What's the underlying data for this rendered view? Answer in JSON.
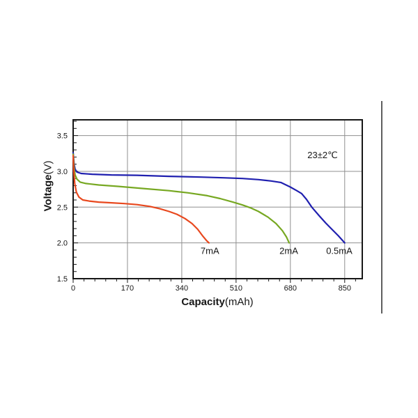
{
  "page": {
    "background": "#ffffff"
  },
  "divider": {
    "color": "#5e5e5e"
  },
  "chart_data": {
    "type": "line",
    "title": "",
    "xlabel_bold": "Capacity",
    "xlabel_unit": "(mAh)",
    "ylabel_bold": "Voltage",
    "ylabel_unit": "(V)",
    "xlim": [
      0,
      905
    ],
    "ylim": [
      1.5,
      3.72
    ],
    "x_major_ticks": [
      0,
      170,
      340,
      510,
      680,
      850
    ],
    "x_minor_step": 34,
    "y_major_ticks": [
      1.5,
      2.0,
      2.5,
      3.0,
      3.5
    ],
    "y_minor_step": 0.1,
    "grid": true,
    "legend_position": "labels-at-curve-ends",
    "annotation": {
      "text": "23±2℃",
      "x": 780,
      "y": 3.23
    },
    "colors": {
      "grid": "#8f8f8f",
      "frame": "#161616",
      "text": "#161616"
    },
    "series": [
      {
        "name": "0.5mA",
        "color": "#1f1faf",
        "label_at": [
          833,
          1.885
        ],
        "points": [
          [
            0,
            3.26
          ],
          [
            3,
            3.1
          ],
          [
            6,
            3.03
          ],
          [
            12,
            2.99
          ],
          [
            25,
            2.97
          ],
          [
            60,
            2.96
          ],
          [
            120,
            2.95
          ],
          [
            200,
            2.945
          ],
          [
            300,
            2.93
          ],
          [
            400,
            2.92
          ],
          [
            470,
            2.91
          ],
          [
            530,
            2.9
          ],
          [
            580,
            2.885
          ],
          [
            620,
            2.865
          ],
          [
            650,
            2.845
          ],
          [
            680,
            2.78
          ],
          [
            700,
            2.73
          ],
          [
            715,
            2.69
          ],
          [
            730,
            2.61
          ],
          [
            747,
            2.5
          ],
          [
            770,
            2.38
          ],
          [
            790,
            2.28
          ],
          [
            810,
            2.19
          ],
          [
            830,
            2.1
          ],
          [
            850,
            2.0
          ]
        ]
      },
      {
        "name": "2mA",
        "color": "#77a822",
        "label_at": [
          675,
          1.885
        ],
        "points": [
          [
            0,
            3.24
          ],
          [
            3,
            3.04
          ],
          [
            6,
            2.95
          ],
          [
            12,
            2.89
          ],
          [
            22,
            2.85
          ],
          [
            40,
            2.83
          ],
          [
            80,
            2.81
          ],
          [
            140,
            2.79
          ],
          [
            220,
            2.76
          ],
          [
            300,
            2.73
          ],
          [
            360,
            2.7
          ],
          [
            420,
            2.66
          ],
          [
            460,
            2.62
          ],
          [
            500,
            2.57
          ],
          [
            530,
            2.53
          ],
          [
            555,
            2.49
          ],
          [
            580,
            2.44
          ],
          [
            610,
            2.36
          ],
          [
            635,
            2.27
          ],
          [
            655,
            2.17
          ],
          [
            668,
            2.08
          ],
          [
            676,
            2.0
          ]
        ]
      },
      {
        "name": "7mA",
        "color": "#e8481e",
        "label_at": [
          428,
          1.885
        ],
        "points": [
          [
            0,
            3.22
          ],
          [
            2,
            3.0
          ],
          [
            5,
            2.83
          ],
          [
            10,
            2.71
          ],
          [
            18,
            2.64
          ],
          [
            30,
            2.6
          ],
          [
            50,
            2.585
          ],
          [
            80,
            2.57
          ],
          [
            120,
            2.56
          ],
          [
            160,
            2.55
          ],
          [
            200,
            2.535
          ],
          [
            240,
            2.51
          ],
          [
            270,
            2.48
          ],
          [
            300,
            2.44
          ],
          [
            325,
            2.4
          ],
          [
            350,
            2.34
          ],
          [
            372,
            2.27
          ],
          [
            390,
            2.19
          ],
          [
            405,
            2.1
          ],
          [
            418,
            2.03
          ],
          [
            425,
            2.0
          ]
        ]
      }
    ]
  }
}
